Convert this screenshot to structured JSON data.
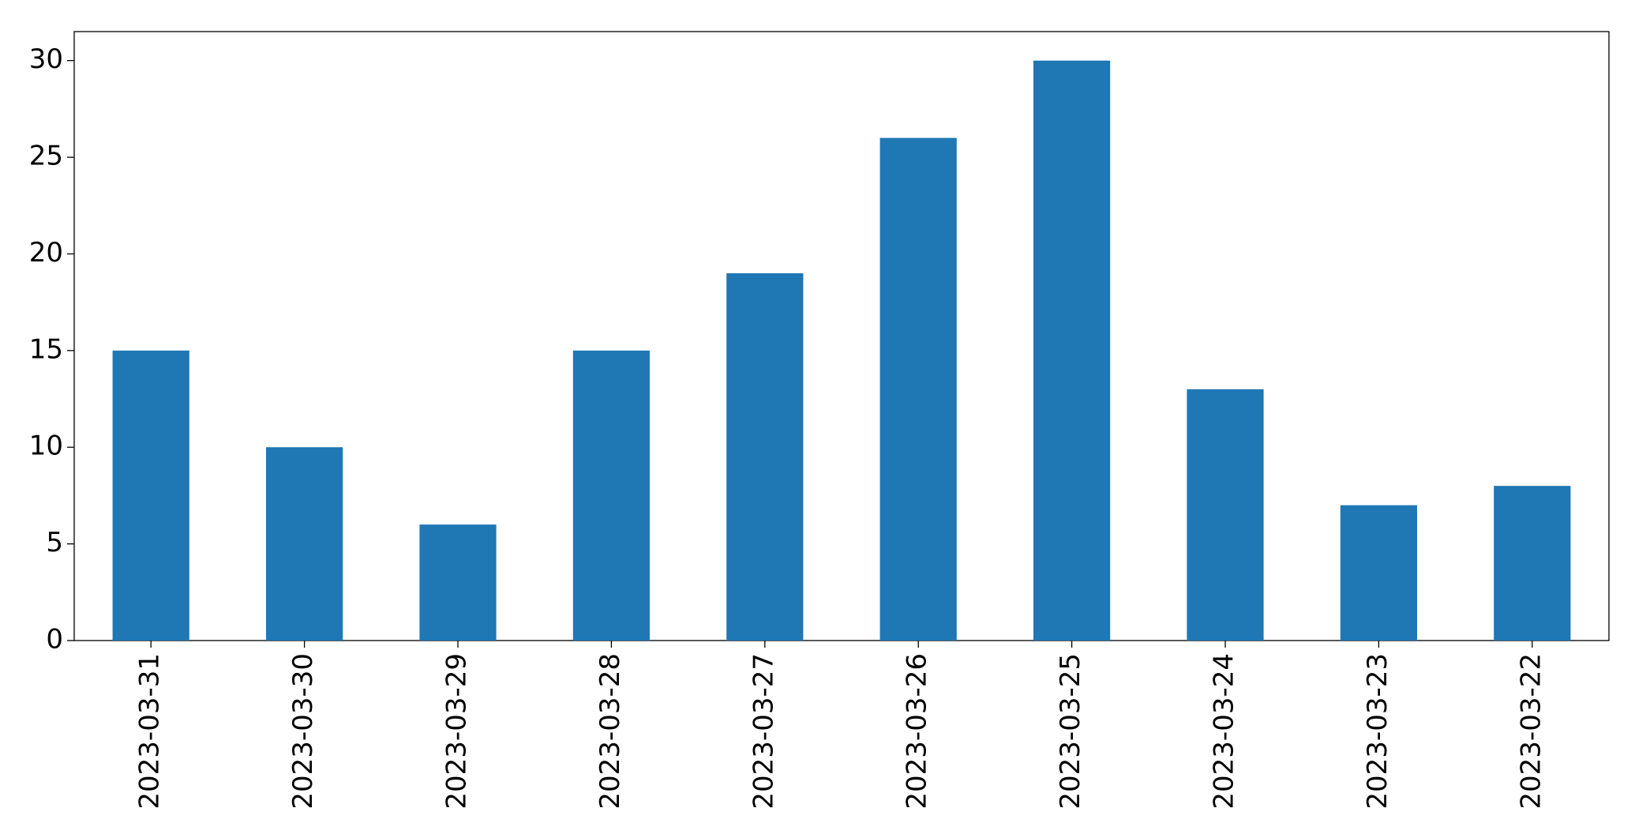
{
  "chart_data": {
    "type": "bar",
    "categories": [
      "2023-03-31",
      "2023-03-30",
      "2023-03-29",
      "2023-03-28",
      "2023-03-27",
      "2023-03-26",
      "2023-03-25",
      "2023-03-24",
      "2023-03-23",
      "2023-03-22"
    ],
    "values": [
      15,
      10,
      6,
      15,
      19,
      26,
      30,
      13,
      7,
      8
    ],
    "color": "#1f77b4",
    "ylim": [
      0,
      31.5
    ],
    "yticks": [
      0,
      5,
      10,
      15,
      20,
      25,
      30
    ],
    "grid": false
  }
}
